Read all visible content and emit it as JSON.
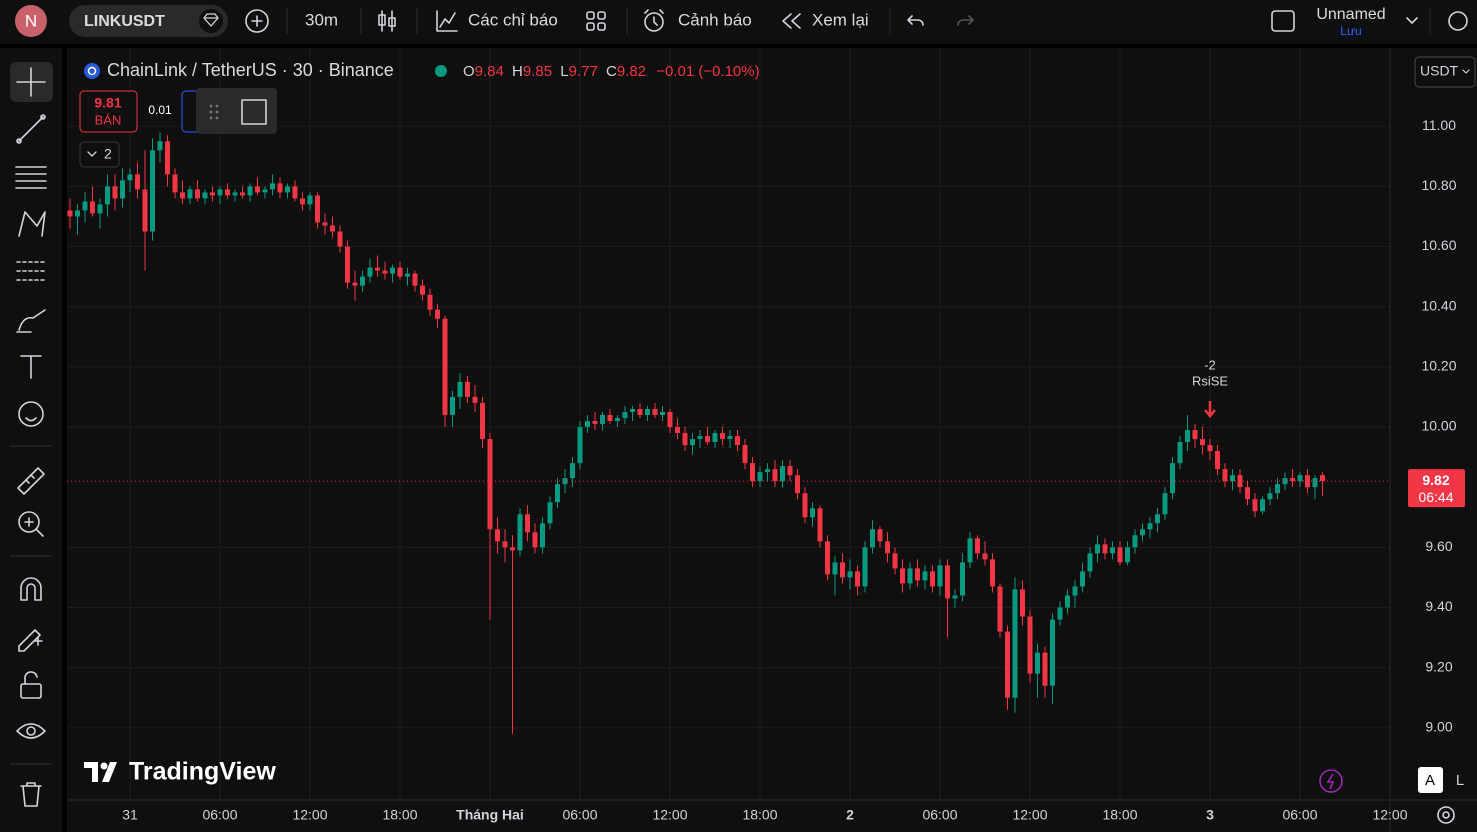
{
  "toolbar": {
    "avatar": "N",
    "symbol": "LINKUSDT",
    "interval": "30m",
    "indicators": "Các chỉ báo",
    "alerts": "Cảnh báo",
    "replay": "Xem lại",
    "layout_name": "Unnamed",
    "save": "Lưu"
  },
  "legend": {
    "title": "ChainLink / TetherUS · 30 · Binance",
    "ohlc": [
      {
        "label": "O",
        "value": "9.84"
      },
      {
        "label": "H",
        "value": "9.85"
      },
      {
        "label": "L",
        "value": "9.77"
      },
      {
        "label": "C",
        "value": "9.82"
      }
    ],
    "change": "−0.01 (−0.10%)"
  },
  "trade": {
    "sell_price": "9.81",
    "sell_label": "BÁN",
    "spread": "0.01"
  },
  "collapse_count": "2",
  "currency": "USDT",
  "watermark": "TradingView",
  "scale_buttons": [
    "A",
    "L"
  ],
  "chart_data": {
    "type": "candlestick",
    "up_color": "#089981",
    "down_color": "#f23645",
    "grid": true,
    "ylim": [
      8.76,
      11.26
    ],
    "yticks": [
      {
        "value": 9,
        "label": "9.00"
      },
      {
        "value": 9.2,
        "label": "9.20"
      },
      {
        "value": 9.4,
        "label": "9.40"
      },
      {
        "value": 9.6,
        "label": "9.60"
      },
      {
        "value": 10,
        "label": "10.00"
      },
      {
        "value": 10.2,
        "label": "10.20"
      },
      {
        "value": 10.4,
        "label": "10.40"
      },
      {
        "value": 10.6,
        "label": "10.60"
      },
      {
        "value": 10.8,
        "label": "10.80"
      },
      {
        "value": 11,
        "label": "11.00"
      }
    ],
    "xticks": [
      "31",
      "06:00",
      "12:00",
      "18:00",
      "Tháng Hai",
      "06:00",
      "12:00",
      "18:00",
      "2",
      "06:00",
      "12:00",
      "18:00",
      "3",
      "06:00",
      "12:00"
    ],
    "last_price": {
      "value": 9.82,
      "label": "9.82"
    },
    "countdown": "06:44",
    "signal": {
      "count": "-2",
      "label": "RsiSE"
    },
    "ohlc": [
      [
        10.72,
        10.76,
        10.66,
        10.7
      ],
      [
        10.7,
        10.74,
        10.64,
        10.72
      ],
      [
        10.72,
        10.78,
        10.68,
        10.75
      ],
      [
        10.75,
        10.8,
        10.7,
        10.71
      ],
      [
        10.71,
        10.76,
        10.66,
        10.74
      ],
      [
        10.74,
        10.84,
        10.7,
        10.8
      ],
      [
        10.8,
        10.84,
        10.72,
        10.76
      ],
      [
        10.76,
        10.86,
        10.73,
        10.82
      ],
      [
        10.82,
        10.86,
        10.78,
        10.84
      ],
      [
        10.84,
        10.88,
        10.76,
        10.79
      ],
      [
        10.79,
        10.92,
        10.52,
        10.65
      ],
      [
        10.65,
        10.96,
        10.62,
        10.92
      ],
      [
        10.92,
        10.98,
        10.88,
        10.95
      ],
      [
        10.95,
        10.97,
        10.8,
        10.84
      ],
      [
        10.84,
        10.86,
        10.76,
        10.78
      ],
      [
        10.78,
        10.82,
        10.74,
        10.76
      ],
      [
        10.76,
        10.8,
        10.74,
        10.79
      ],
      [
        10.79,
        10.82,
        10.75,
        10.76
      ],
      [
        10.76,
        10.79,
        10.74,
        10.78
      ],
      [
        10.78,
        10.8,
        10.75,
        10.77
      ],
      [
        10.77,
        10.8,
        10.74,
        10.79
      ],
      [
        10.79,
        10.81,
        10.76,
        10.77
      ],
      [
        10.77,
        10.79,
        10.75,
        10.78
      ],
      [
        10.78,
        10.8,
        10.76,
        10.77
      ],
      [
        10.77,
        10.81,
        10.75,
        10.8
      ],
      [
        10.8,
        10.83,
        10.77,
        10.78
      ],
      [
        10.78,
        10.8,
        10.76,
        10.79
      ],
      [
        10.79,
        10.84,
        10.77,
        10.81
      ],
      [
        10.81,
        10.83,
        10.76,
        10.78
      ],
      [
        10.78,
        10.81,
        10.76,
        10.8
      ],
      [
        10.8,
        10.82,
        10.75,
        10.76
      ],
      [
        10.76,
        10.78,
        10.72,
        10.74
      ],
      [
        10.74,
        10.78,
        10.72,
        10.77
      ],
      [
        10.77,
        10.78,
        10.66,
        10.68
      ],
      [
        10.68,
        10.71,
        10.64,
        10.67
      ],
      [
        10.67,
        10.7,
        10.63,
        10.65
      ],
      [
        10.65,
        10.67,
        10.58,
        10.6
      ],
      [
        10.6,
        10.62,
        10.46,
        10.48
      ],
      [
        10.48,
        10.52,
        10.42,
        10.47
      ],
      [
        10.47,
        10.52,
        10.45,
        10.5
      ],
      [
        10.5,
        10.56,
        10.48,
        10.53
      ],
      [
        10.53,
        10.57,
        10.5,
        10.52
      ],
      [
        10.52,
        10.55,
        10.49,
        10.51
      ],
      [
        10.51,
        10.54,
        10.48,
        10.53
      ],
      [
        10.53,
        10.55,
        10.49,
        10.5
      ],
      [
        10.5,
        10.53,
        10.47,
        10.51
      ],
      [
        10.51,
        10.52,
        10.45,
        10.47
      ],
      [
        10.47,
        10.49,
        10.42,
        10.44
      ],
      [
        10.44,
        10.46,
        10.37,
        10.39
      ],
      [
        10.39,
        10.41,
        10.33,
        10.36
      ],
      [
        10.36,
        10.37,
        10.0,
        10.04
      ],
      [
        10.04,
        10.12,
        10.0,
        10.1
      ],
      [
        10.1,
        10.18,
        10.06,
        10.15
      ],
      [
        10.15,
        10.17,
        10.08,
        10.1
      ],
      [
        10.1,
        10.14,
        10.05,
        10.08
      ],
      [
        10.08,
        10.1,
        9.93,
        9.96
      ],
      [
        9.96,
        9.98,
        9.36,
        9.66
      ],
      [
        9.66,
        9.7,
        9.58,
        9.62
      ],
      [
        9.62,
        9.66,
        9.55,
        9.6
      ],
      [
        9.6,
        9.64,
        8.98,
        9.59
      ],
      [
        9.59,
        9.73,
        9.57,
        9.71
      ],
      [
        9.71,
        9.74,
        9.62,
        9.65
      ],
      [
        9.65,
        9.68,
        9.58,
        9.6
      ],
      [
        9.6,
        9.7,
        9.58,
        9.68
      ],
      [
        9.68,
        9.77,
        9.66,
        9.75
      ],
      [
        9.75,
        9.83,
        9.73,
        9.81
      ],
      [
        9.81,
        9.86,
        9.78,
        9.83
      ],
      [
        9.83,
        9.9,
        9.8,
        9.88
      ],
      [
        9.88,
        10.02,
        9.86,
        10.0
      ],
      [
        10.0,
        10.04,
        9.98,
        10.02
      ],
      [
        10.02,
        10.05,
        9.99,
        10.01
      ],
      [
        10.01,
        10.05,
        9.99,
        10.04
      ],
      [
        10.04,
        10.06,
        10.01,
        10.02
      ],
      [
        10.02,
        10.04,
        10.0,
        10.03
      ],
      [
        10.03,
        10.07,
        10.01,
        10.05
      ],
      [
        10.05,
        10.07,
        10.02,
        10.06
      ],
      [
        10.06,
        10.08,
        10.03,
        10.04
      ],
      [
        10.04,
        10.07,
        10.02,
        10.06
      ],
      [
        10.06,
        10.08,
        10.03,
        10.04
      ],
      [
        10.04,
        10.07,
        10.02,
        10.05
      ],
      [
        10.05,
        10.06,
        9.98,
        10.0
      ],
      [
        10.0,
        10.03,
        9.96,
        9.98
      ],
      [
        9.98,
        10.0,
        9.92,
        9.94
      ],
      [
        9.94,
        9.98,
        9.91,
        9.96
      ],
      [
        9.96,
        9.99,
        9.93,
        9.97
      ],
      [
        9.97,
        10.0,
        9.94,
        9.95
      ],
      [
        9.95,
        9.99,
        9.93,
        9.98
      ],
      [
        9.98,
        10.0,
        9.94,
        9.96
      ],
      [
        9.96,
        9.99,
        9.93,
        9.97
      ],
      [
        9.97,
        9.99,
        9.92,
        9.94
      ],
      [
        9.94,
        9.96,
        9.86,
        9.88
      ],
      [
        9.88,
        9.9,
        9.8,
        9.82
      ],
      [
        9.82,
        9.87,
        9.8,
        9.85
      ],
      [
        9.85,
        9.88,
        9.82,
        9.86
      ],
      [
        9.86,
        9.89,
        9.8,
        9.82
      ],
      [
        9.82,
        9.89,
        9.8,
        9.87
      ],
      [
        9.87,
        9.89,
        9.82,
        9.84
      ],
      [
        9.84,
        9.86,
        9.76,
        9.78
      ],
      [
        9.78,
        9.8,
        9.68,
        9.7
      ],
      [
        9.7,
        9.75,
        9.67,
        9.73
      ],
      [
        9.73,
        9.74,
        9.6,
        9.62
      ],
      [
        9.62,
        9.64,
        9.49,
        9.51
      ],
      [
        9.51,
        9.57,
        9.44,
        9.55
      ],
      [
        9.55,
        9.58,
        9.48,
        9.5
      ],
      [
        9.5,
        9.56,
        9.46,
        9.52
      ],
      [
        9.52,
        9.54,
        9.44,
        9.47
      ],
      [
        9.47,
        9.62,
        9.45,
        9.6
      ],
      [
        9.6,
        9.69,
        9.58,
        9.66
      ],
      [
        9.66,
        9.67,
        9.6,
        9.62
      ],
      [
        9.62,
        9.65,
        9.55,
        9.58
      ],
      [
        9.58,
        9.6,
        9.51,
        9.53
      ],
      [
        9.53,
        9.56,
        9.45,
        9.48
      ],
      [
        9.48,
        9.55,
        9.46,
        9.53
      ],
      [
        9.53,
        9.56,
        9.47,
        9.49
      ],
      [
        9.49,
        9.54,
        9.46,
        9.52
      ],
      [
        9.52,
        9.54,
        9.45,
        9.47
      ],
      [
        9.47,
        9.56,
        9.44,
        9.54
      ],
      [
        9.54,
        9.56,
        9.3,
        9.43
      ],
      [
        9.43,
        9.46,
        9.4,
        9.44
      ],
      [
        9.44,
        9.58,
        9.42,
        9.55
      ],
      [
        9.55,
        9.65,
        9.53,
        9.63
      ],
      [
        9.63,
        9.64,
        9.56,
        9.58
      ],
      [
        9.58,
        9.62,
        9.54,
        9.56
      ],
      [
        9.56,
        9.58,
        9.45,
        9.47
      ],
      [
        9.47,
        9.48,
        9.3,
        9.32
      ],
      [
        9.32,
        9.34,
        9.06,
        9.1
      ],
      [
        9.1,
        9.5,
        9.05,
        9.46
      ],
      [
        9.46,
        9.49,
        9.34,
        9.37
      ],
      [
        9.37,
        9.39,
        9.15,
        9.18
      ],
      [
        9.18,
        9.28,
        9.1,
        9.25
      ],
      [
        9.25,
        9.27,
        9.1,
        9.14
      ],
      [
        9.14,
        9.38,
        9.08,
        9.36
      ],
      [
        9.36,
        9.42,
        9.34,
        9.4
      ],
      [
        9.4,
        9.46,
        9.38,
        9.44
      ],
      [
        9.44,
        9.49,
        9.4,
        9.47
      ],
      [
        9.47,
        9.55,
        9.45,
        9.52
      ],
      [
        9.52,
        9.6,
        9.5,
        9.58
      ],
      [
        9.58,
        9.64,
        9.55,
        9.61
      ],
      [
        9.61,
        9.63,
        9.56,
        9.58
      ],
      [
        9.58,
        9.62,
        9.56,
        9.6
      ],
      [
        9.6,
        9.62,
        9.54,
        9.55
      ],
      [
        9.55,
        9.62,
        9.54,
        9.6
      ],
      [
        9.6,
        9.66,
        9.58,
        9.64
      ],
      [
        9.64,
        9.68,
        9.62,
        9.66
      ],
      [
        9.66,
        9.7,
        9.63,
        9.68
      ],
      [
        9.68,
        9.73,
        9.65,
        9.71
      ],
      [
        9.71,
        9.8,
        9.69,
        9.78
      ],
      [
        9.78,
        9.9,
        9.76,
        9.88
      ],
      [
        9.88,
        9.97,
        9.86,
        9.95
      ],
      [
        9.95,
        10.04,
        9.92,
        9.99
      ],
      [
        9.99,
        10.01,
        9.93,
        9.96
      ],
      [
        9.96,
        10.0,
        9.91,
        9.94
      ],
      [
        9.94,
        9.96,
        9.89,
        9.92
      ],
      [
        9.92,
        9.94,
        9.84,
        9.86
      ],
      [
        9.86,
        9.88,
        9.8,
        9.82
      ],
      [
        9.82,
        9.86,
        9.79,
        9.84
      ],
      [
        9.84,
        9.86,
        9.78,
        9.8
      ],
      [
        9.8,
        9.82,
        9.74,
        9.76
      ],
      [
        9.76,
        9.78,
        9.7,
        9.72
      ],
      [
        9.72,
        9.77,
        9.71,
        9.76
      ],
      [
        9.76,
        9.8,
        9.74,
        9.78
      ],
      [
        9.78,
        9.83,
        9.76,
        9.81
      ],
      [
        9.81,
        9.85,
        9.79,
        9.83
      ],
      [
        9.83,
        9.86,
        9.8,
        9.82
      ],
      [
        9.82,
        9.85,
        9.8,
        9.84
      ],
      [
        9.84,
        9.86,
        9.78,
        9.8
      ],
      [
        9.8,
        9.84,
        9.76,
        9.83
      ],
      [
        9.84,
        9.85,
        9.77,
        9.82
      ]
    ]
  }
}
